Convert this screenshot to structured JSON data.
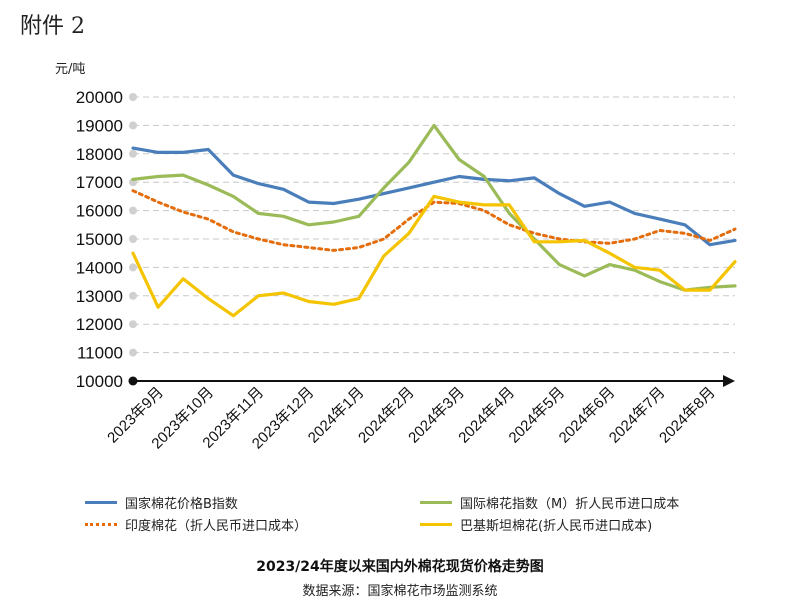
{
  "annex_label": "附件 2",
  "unit_label": "元/吨",
  "chart_data": {
    "type": "line",
    "title": "2023/24年度以来国内外棉花现货价格走势图",
    "source": "数据来源：国家棉花市场监测系统",
    "ylabel": "元/吨",
    "ylim": [
      10000,
      20000
    ],
    "yticks": [
      "20000",
      "19000",
      "18000",
      "17000",
      "16000",
      "15000",
      "14000",
      "13000",
      "12000",
      "11000",
      "10000"
    ],
    "grid": true,
    "x_categories": [
      "2023年9月",
      "2023年10月",
      "2023年11月",
      "2023年12月",
      "2024年1月",
      "2024年2月",
      "2024年3月",
      "2024年4月",
      "2024年5月",
      "2024年6月",
      "2024年7月",
      "2024年8月"
    ],
    "x_positions": [
      0,
      0.5,
      1.0,
      1.5,
      2.0,
      2.5,
      3.0,
      3.5,
      4.0,
      4.5,
      5.0,
      5.5,
      6.0,
      6.5,
      7.0,
      7.5,
      8.0,
      8.5,
      9.0,
      9.5,
      10.0,
      10.5,
      11.0,
      11.5,
      12.0
    ],
    "series": [
      {
        "name": "国家棉花价格B指数",
        "color": "#4a7ebb",
        "style": "solid",
        "values": [
          18200,
          18050,
          18050,
          18150,
          17250,
          16950,
          16750,
          16300,
          16250,
          16400,
          16600,
          16800,
          17000,
          17200,
          17100,
          17050,
          17150,
          16600,
          16150,
          16300,
          15900,
          15700,
          15500,
          14800,
          14950
        ]
      },
      {
        "name": "国际棉花指数（M）折人民币进口成本",
        "color": "#9bbb59",
        "style": "solid",
        "values": [
          17100,
          17200,
          17250,
          16900,
          16500,
          15900,
          15800,
          15500,
          15600,
          15800,
          16800,
          17700,
          19000,
          17800,
          17200,
          15900,
          15000,
          14100,
          13700,
          14100,
          13900,
          13500,
          13200,
          13300,
          13350
        ]
      },
      {
        "name": "印度棉花（折人民币进口成本）",
        "color": "#e46c0a",
        "style": "dotted",
        "values": [
          16700,
          16300,
          15950,
          15700,
          15250,
          15000,
          14800,
          14700,
          14600,
          14700,
          15000,
          15700,
          16300,
          16250,
          16000,
          15500,
          15200,
          15000,
          14900,
          14850,
          15000,
          15300,
          15200,
          14950,
          15350
        ]
      },
      {
        "name": "巴基斯坦棉花(折人民币进口成本)",
        "color": "#f5c400",
        "style": "solid",
        "values": [
          14500,
          12600,
          13600,
          12900,
          12300,
          13000,
          13100,
          12800,
          12700,
          12900,
          14400,
          15200,
          16500,
          16300,
          16200,
          16200,
          14900,
          14900,
          14950,
          14500,
          14000,
          13900,
          13200,
          13200,
          14200
        ]
      }
    ]
  },
  "legend_positions": [
    "tl",
    "tr",
    "bl",
    "br"
  ]
}
